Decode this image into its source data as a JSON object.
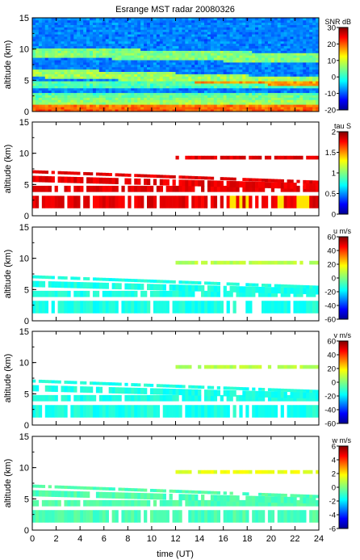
{
  "chart_data": {
    "type": "heatmap",
    "title": "Esrange MST radar 20080326",
    "xlabel": "time (UT)",
    "xlim": [
      0,
      24
    ],
    "xticks": [
      0,
      2,
      4,
      6,
      8,
      10,
      12,
      14,
      16,
      18,
      20,
      22,
      24
    ],
    "panels": [
      {
        "id": "snr",
        "ylabel": "altitude (km)",
        "ylim": [
          0,
          15
        ],
        "yticks": [
          0,
          5,
          10,
          15
        ],
        "colorbar_label": "SNR dB",
        "colorbar_range": [
          -20,
          30
        ],
        "colorbar_ticks": [
          -20,
          -10,
          0,
          10,
          20,
          30
        ]
      },
      {
        "id": "tau",
        "ylabel": "altitude (km)",
        "ylim": [
          0,
          15
        ],
        "yticks": [
          0,
          5,
          10,
          15
        ],
        "colorbar_label": "tau S",
        "colorbar_range": [
          0,
          2
        ],
        "colorbar_ticks": [
          0,
          0.5,
          1,
          1.5,
          2
        ]
      },
      {
        "id": "u",
        "ylabel": "altitude (km)",
        "ylim": [
          0,
          15
        ],
        "yticks": [
          0,
          5,
          10,
          15
        ],
        "colorbar_label": "u m/s",
        "colorbar_range": [
          -60,
          60
        ],
        "colorbar_ticks": [
          -60,
          -40,
          -20,
          0,
          20,
          40,
          60
        ]
      },
      {
        "id": "v",
        "ylabel": "altitude (km)",
        "ylim": [
          0,
          15
        ],
        "yticks": [
          0,
          5,
          10,
          15
        ],
        "colorbar_label": "v m/s",
        "colorbar_range": [
          -60,
          60
        ],
        "colorbar_ticks": [
          -60,
          -40,
          -20,
          0,
          20,
          40,
          60
        ]
      },
      {
        "id": "w",
        "ylabel": "altitude (km)",
        "ylim": [
          0,
          15
        ],
        "yticks": [
          0,
          5,
          10,
          15
        ],
        "colorbar_label": "w m/s",
        "colorbar_range": [
          -6,
          6
        ],
        "colorbar_ticks": [
          -6,
          -4,
          -2,
          0,
          2,
          4,
          6
        ]
      }
    ]
  }
}
